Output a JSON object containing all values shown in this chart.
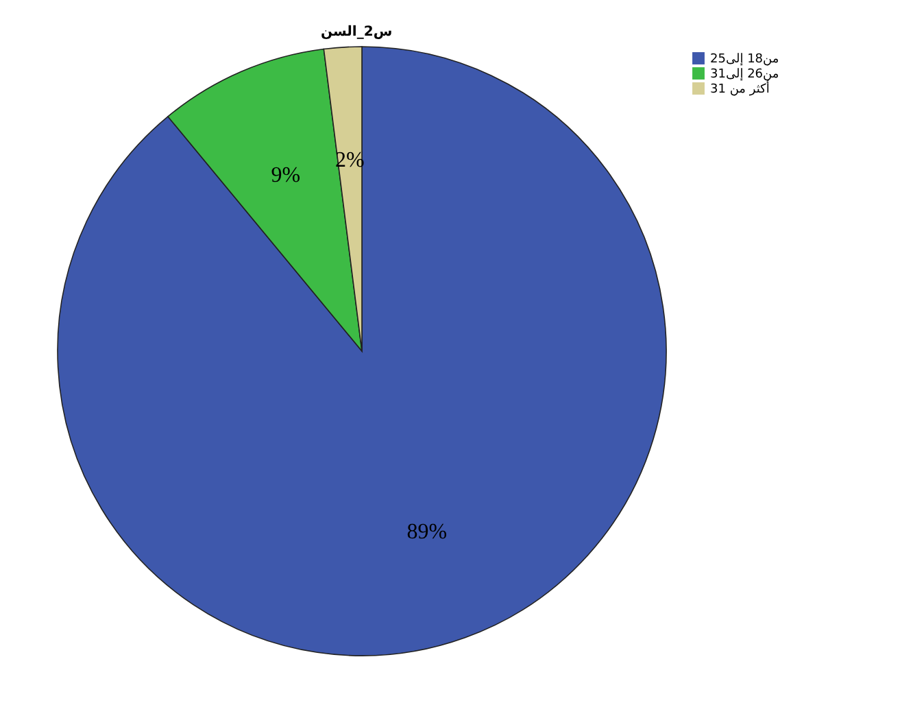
{
  "chart_data": {
    "type": "pie",
    "title": "س2_السن",
    "categories": [
      "من18 إلى25",
      "من26 إلى31",
      "أكثر من 31"
    ],
    "values": [
      89,
      9,
      2
    ],
    "colors": [
      "#3e58ac",
      "#3dbb45",
      "#d6cf95"
    ],
    "value_labels": [
      "89%",
      "9%",
      "2%"
    ],
    "legend": "top right"
  }
}
